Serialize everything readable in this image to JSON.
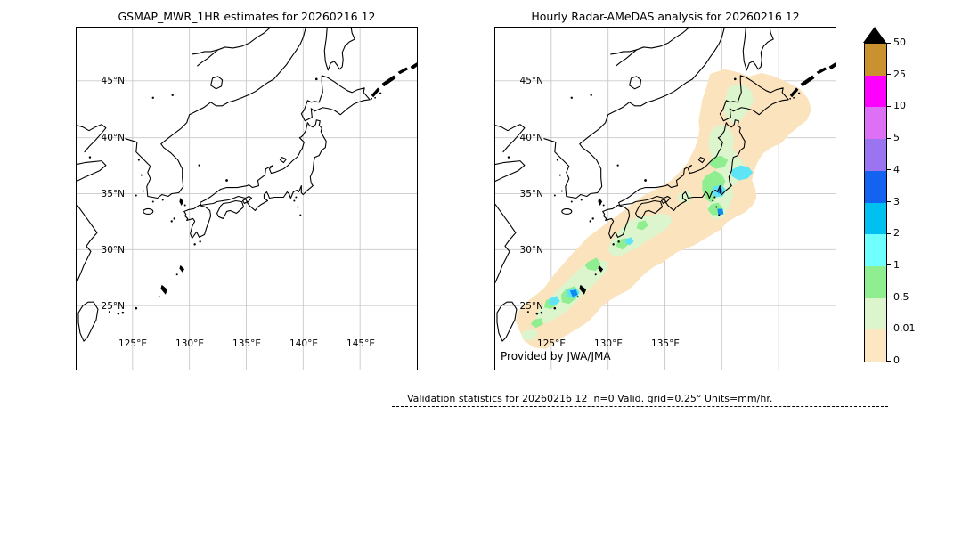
{
  "figure": {
    "left_panel": {
      "title": "GSMAP_MWR_1HR estimates for 20260216 12",
      "lat_labels": [
        "45°N",
        "40°N",
        "35°N",
        "30°N",
        "25°N"
      ],
      "lon_labels": [
        "125°E",
        "130°E",
        "135°E",
        "140°E",
        "145°E"
      ]
    },
    "right_panel": {
      "title": "Hourly Radar-AMeDAS analysis for 20260216 12",
      "lat_labels": [
        "45°N",
        "40°N",
        "35°N",
        "30°N",
        "25°N"
      ],
      "lon_labels": [
        "125°E",
        "130°E",
        "135°E"
      ],
      "credit": "Provided by JWA/JMA"
    },
    "colorbar": {
      "units": "mm/hr",
      "tick_labels": [
        "50",
        "25",
        "10",
        "5",
        "4",
        "3",
        "2",
        "1",
        "0.5",
        "0.01",
        "0"
      ],
      "levels_mm_hr": [
        0,
        0.01,
        0.5,
        1,
        2,
        3,
        4,
        5,
        10,
        25,
        50
      ],
      "colors_bottom_to_top": [
        "#fde7c2",
        "#dcf5cc",
        "#8fee8f",
        "#70ffff",
        "#00c0f0",
        "#1463f0",
        "#9b75f0",
        "#dd70f5",
        "#ff00ff",
        "#c9922e"
      ],
      "overflow_color": "#000000",
      "gridline_color": "#c9c9c9"
    },
    "footer": {
      "text": "Validation statistics for 20260216 12  n=0 Valid. grid=0.25° Units=mm/hr."
    }
  }
}
